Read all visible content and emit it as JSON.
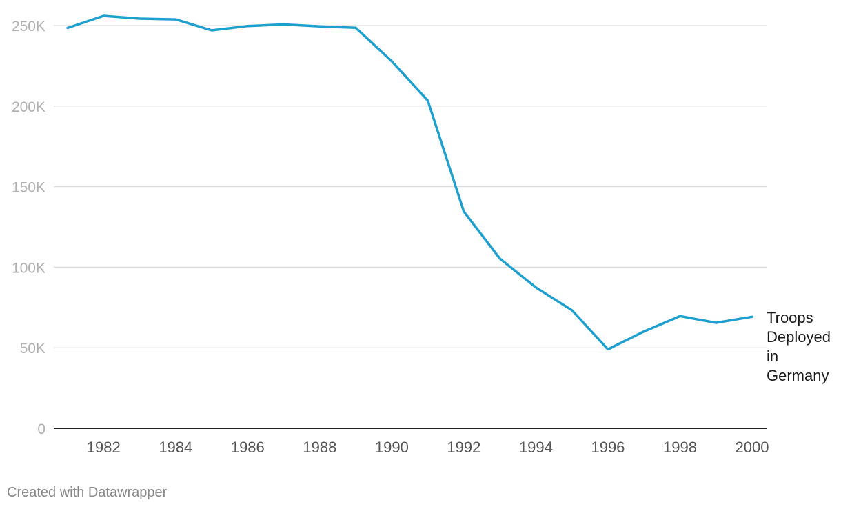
{
  "chart_data": {
    "type": "line",
    "title": "",
    "xlabel": "",
    "ylabel": "",
    "x": [
      1981,
      1982,
      1983,
      1984,
      1985,
      1986,
      1987,
      1988,
      1989,
      1990,
      1991,
      1992,
      1993,
      1994,
      1995,
      1996,
      1997,
      1998,
      1999,
      2000
    ],
    "series": [
      {
        "name": "Troops Deployed in Germany",
        "label_lines": [
          "Troops",
          "Deployed",
          "in",
          "Germany"
        ],
        "color": "#1f9fce",
        "values": [
          248500,
          256000,
          254300,
          253800,
          247000,
          249700,
          250700,
          249500,
          248600,
          227800,
          203400,
          134500,
          105300,
          87400,
          73300,
          49000,
          60100,
          69600,
          65500,
          69200
        ]
      }
    ],
    "xlim": [
      1981,
      2000
    ],
    "ylim": [
      0,
      250000
    ],
    "y_ticks": [
      {
        "value": 0,
        "label": "0"
      },
      {
        "value": 50000,
        "label": "50K"
      },
      {
        "value": 100000,
        "label": "100K"
      },
      {
        "value": 150000,
        "label": "150K"
      },
      {
        "value": 200000,
        "label": "200K"
      },
      {
        "value": 250000,
        "label": "250K"
      }
    ],
    "x_ticks": [
      {
        "value": 1982,
        "label": "1982"
      },
      {
        "value": 1984,
        "label": "1984"
      },
      {
        "value": 1986,
        "label": "1986"
      },
      {
        "value": 1988,
        "label": "1988"
      },
      {
        "value": 1990,
        "label": "1990"
      },
      {
        "value": 1992,
        "label": "1992"
      },
      {
        "value": 1994,
        "label": "1994"
      },
      {
        "value": 1996,
        "label": "1996"
      },
      {
        "value": 1998,
        "label": "1998"
      },
      {
        "value": 2000,
        "label": "2000"
      }
    ],
    "grid": true,
    "legend": "direct label at line end",
    "colors": {
      "grid": "#dcdcdc",
      "baseline": "#222222",
      "y_tick_text": "#b0b0b0",
      "x_tick_text": "#555555"
    }
  },
  "footer": {
    "credit": "Created with Datawrapper"
  }
}
